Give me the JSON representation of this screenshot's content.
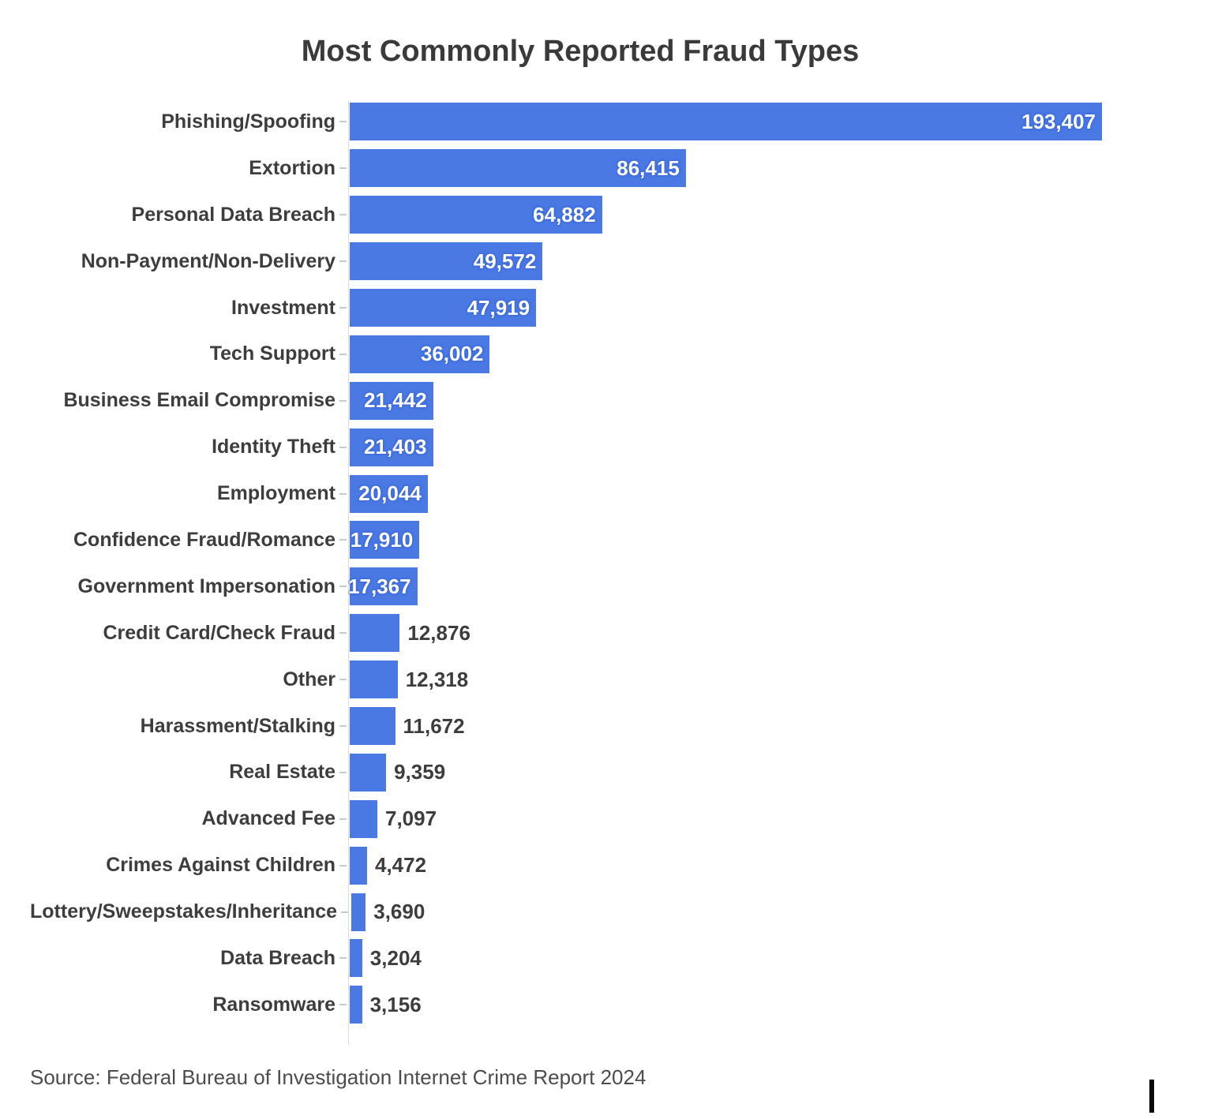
{
  "chart": {
    "title": "Most Commonly Reported Fraud Types",
    "source": "Source: Federal Bureau of Investigation Internet Crime Report 2024"
  },
  "chart_data": {
    "type": "bar",
    "orientation": "horizontal",
    "title": "Most Commonly Reported Fraud Types",
    "xlabel": "",
    "ylabel": "",
    "xlim": [
      0,
      200000
    ],
    "grid": false,
    "legend": "none",
    "bar_color": "#4a79e4",
    "label_color": "#3d3d3d",
    "value_label_inside_color": "#ffffff",
    "value_label_outside_color": "#3d3d3d",
    "categories": [
      "Phishing/Spoofing",
      "Extortion",
      "Personal Data Breach",
      "Non-Payment/Non-Delivery",
      "Investment",
      "Tech Support",
      "Business Email Compromise",
      "Identity Theft",
      "Employment",
      "Confidence Fraud/Romance",
      "Government Impersonation",
      "Credit Card/Check Fraud",
      "Other",
      "Harassment/Stalking",
      "Real Estate",
      "Advanced Fee",
      "Crimes Against Children",
      "Lottery/Sweepstakes/Inheritance",
      "Data Breach",
      "Ransomware"
    ],
    "values": [
      193407,
      86415,
      64882,
      49572,
      47919,
      36002,
      21442,
      21403,
      20044,
      17910,
      17367,
      12876,
      12318,
      11672,
      9359,
      7097,
      4472,
      3690,
      3204,
      3156
    ],
    "value_labels": [
      "193,407",
      "86,415",
      "64,882",
      "49,572",
      "47,919",
      "36,002",
      "21,442",
      "21,403",
      "20,044",
      "17,910",
      "17,367",
      "12,876",
      "12,318",
      "11,672",
      "9,359",
      "7,097",
      "4,472",
      "3,690",
      "3,204",
      "3,156"
    ],
    "caption": "Source: Federal Bureau of Investigation Internet Crime Report 2024"
  }
}
